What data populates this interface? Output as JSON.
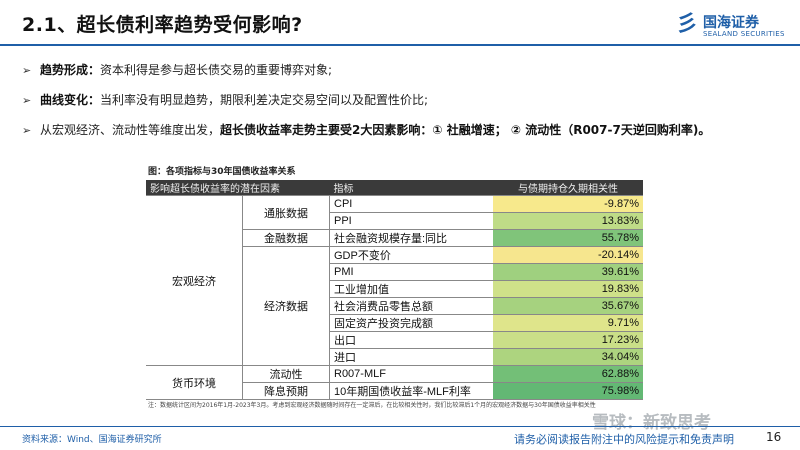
{
  "header": {
    "title": "2.1、超长债利率趋势受何影响?",
    "logo_cn": "国海证券",
    "logo_en": "SEALAND SECURITIES",
    "logo_mark": "彡"
  },
  "bullets": [
    {
      "bold": "趋势形成：",
      "text": "资本利得是参与超长债交易的重要博弈对象;"
    },
    {
      "bold": "曲线变化：",
      "text": "当利率没有明显趋势，期限利差决定交易空间以及配置性价比;"
    },
    {
      "pre": "从宏观经济、流动性等维度出发，",
      "bold": "超长债收益率走势主要受2大因素影响：① 社融增速； ② 流动性（R007-7天逆回购利率)。",
      "text": ""
    }
  ],
  "figure": {
    "caption": "图：各项指标与30年国债收益率关系",
    "headers": [
      "影响超长债收益率的潜在因素",
      "指标",
      "与债期持仓久期相关性"
    ],
    "groups": [
      "宏观经济",
      "货币环境"
    ],
    "subgroups": [
      "通胀数据",
      "金融数据",
      "经济数据",
      "流动性",
      "降息预期"
    ],
    "rows": [
      {
        "indicator": "CPI",
        "value": "-9.87%",
        "color": "#f7e98c"
      },
      {
        "indicator": "PPI",
        "value": "13.83%",
        "color": "#bfdc87"
      },
      {
        "indicator": "社会融资规模存量:同比",
        "value": "55.78%",
        "color": "#80c47a"
      },
      {
        "indicator": "GDP不变价",
        "value": "-20.14%",
        "color": "#f6e68e"
      },
      {
        "indicator": "PMI",
        "value": "39.61%",
        "color": "#9fd07f"
      },
      {
        "indicator": "工业增加值",
        "value": "19.83%",
        "color": "#cfe189"
      },
      {
        "indicator": "社会消费品零售总额",
        "value": "35.67%",
        "color": "#a6d27f"
      },
      {
        "indicator": "固定资产投资完成额",
        "value": "9.71%",
        "color": "#dfe58b"
      },
      {
        "indicator": "出口",
        "value": "17.23%",
        "color": "#cadf88"
      },
      {
        "indicator": "进口",
        "value": "34.04%",
        "color": "#add47f"
      },
      {
        "indicator": "R007-MLF",
        "value": "62.88%",
        "color": "#73bf77"
      },
      {
        "indicator": "10年期国债收益率-MLF利率",
        "value": "75.98%",
        "color": "#63b874"
      }
    ],
    "note": "注：数据统计区间为2016年1月-2023年3月。考虑到宏观经济数据随时间存在一定滞后，在比较相关性时，我们比较滞后1个月的宏观经济数据与30年国债收益率相关性"
  },
  "footer": {
    "source": "资料来源：Wind、国海证券研究所",
    "disclaimer": "请务必阅读报告附注中的风险提示和免责声明",
    "page": "16",
    "watermark": "雪球：新致思考"
  },
  "colors": {
    "brand_blue": "#1f5fa8",
    "header_dark": "#3a3a3a"
  }
}
